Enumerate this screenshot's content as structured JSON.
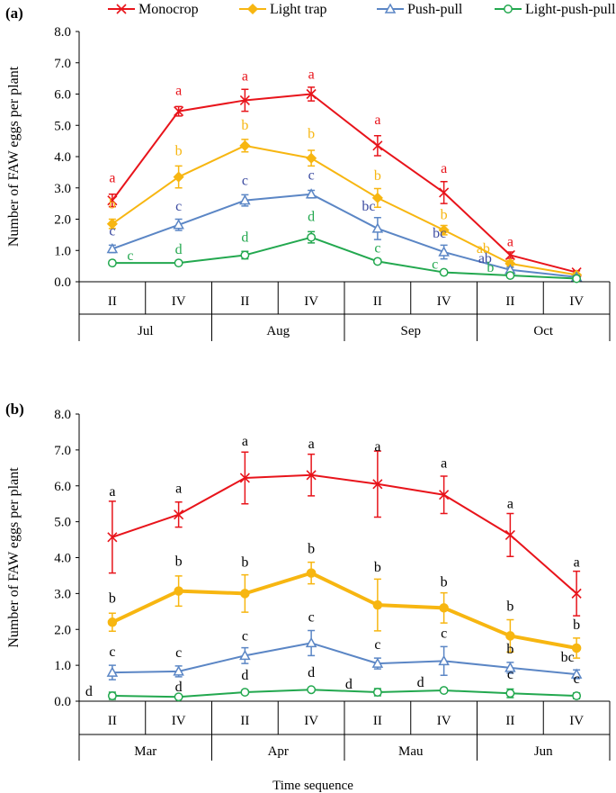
{
  "chart_data": [
    {
      "type": "line",
      "panel_label": "(a)",
      "ylabel": "Number of FAW eggs per plant",
      "xlabel": "",
      "ylim": [
        0,
        8
      ],
      "ytick_step": 1,
      "ytick_labels": [
        "0.0",
        "1.0",
        "2.0",
        "3.0",
        "4.0",
        "5.0",
        "6.0",
        "7.0",
        "8.0"
      ],
      "categories": [
        "II",
        "IV",
        "II",
        "IV",
        "II",
        "IV",
        "II",
        "IV"
      ],
      "months": [
        "Jul",
        "Aug",
        "Sep",
        "Oct"
      ],
      "legend": [
        "Monocrop",
        "Light trap",
        "Push-pull",
        "Light-push-pull"
      ],
      "series": [
        {
          "name": "Monocrop",
          "color": "#e8141b",
          "marker": "x",
          "width": 2,
          "values": [
            2.6,
            5.45,
            5.8,
            6.0,
            4.35,
            2.85,
            0.85,
            0.3
          ],
          "errors": [
            0.2,
            0.15,
            0.35,
            0.22,
            0.32,
            0.35,
            0.1,
            0.05
          ],
          "letters": [
            "a",
            "a",
            "a",
            "a",
            "a",
            "a",
            "a",
            ""
          ]
        },
        {
          "name": "Light trap",
          "color": "#f7b611",
          "marker": "diamond",
          "width": 2,
          "values": [
            1.85,
            3.35,
            4.35,
            3.95,
            2.68,
            1.65,
            0.58,
            0.22
          ],
          "errors": [
            0.15,
            0.35,
            0.2,
            0.25,
            0.3,
            0.15,
            0.1,
            0.05
          ],
          "letters": [
            "b",
            "b",
            "b",
            "b",
            "b",
            "b",
            "ab",
            ""
          ]
        },
        {
          "name": "Push-pull",
          "color": "#5b86c5",
          "marker": "triangle",
          "width": 2,
          "values": [
            1.05,
            1.82,
            2.6,
            2.8,
            1.7,
            0.95,
            0.38,
            0.15
          ],
          "errors": [
            0.12,
            0.18,
            0.18,
            0.12,
            0.35,
            0.22,
            0.08,
            0.05
          ],
          "letters": [
            "c",
            "c",
            "c",
            "c",
            "bc",
            "bc",
            "ab",
            ""
          ]
        },
        {
          "name": "Light-push-pull",
          "color": "#23a84f",
          "marker": "circle",
          "width": 2,
          "values": [
            0.6,
            0.6,
            0.85,
            1.42,
            0.65,
            0.3,
            0.2,
            0.1
          ],
          "errors": [
            0.05,
            0.05,
            0.12,
            0.18,
            0.05,
            0.05,
            0.05,
            0.03
          ],
          "letters": [
            "c",
            "d",
            "d",
            "d",
            "c",
            "c",
            "b",
            ""
          ]
        }
      ]
    },
    {
      "type": "line",
      "panel_label": "(b)",
      "ylabel": "Number of FAW eggs per plant",
      "xlabel": "Time sequence",
      "ylim": [
        0,
        8
      ],
      "ytick_step": 1,
      "ytick_labels": [
        "0.0",
        "1.0",
        "2.0",
        "3.0",
        "4.0",
        "5.0",
        "6.0",
        "7.0",
        "8.0"
      ],
      "categories": [
        "II",
        "IV",
        "II",
        "IV",
        "II",
        "IV",
        "II",
        "IV"
      ],
      "months": [
        "Mar",
        "Apr",
        "Mau",
        "Jun"
      ],
      "series": [
        {
          "name": "Monocrop",
          "color": "#e8141b",
          "marker": "x",
          "width": 2,
          "values": [
            4.57,
            5.2,
            6.22,
            6.3,
            6.05,
            5.75,
            4.63,
            3.0
          ],
          "errors": [
            1.0,
            0.35,
            0.72,
            0.58,
            0.92,
            0.52,
            0.6,
            0.62
          ],
          "letters": [
            "a",
            "a",
            "a",
            "a",
            "a",
            "a",
            "a",
            "a"
          ]
        },
        {
          "name": "Light trap",
          "color": "#f7b611",
          "marker": "circle-filled",
          "width": 4,
          "values": [
            2.2,
            3.07,
            3.0,
            3.57,
            2.68,
            2.6,
            1.82,
            1.48
          ],
          "errors": [
            0.25,
            0.42,
            0.52,
            0.3,
            0.72,
            0.42,
            0.45,
            0.28
          ],
          "letters": [
            "b",
            "b",
            "b",
            "b",
            "b",
            "b",
            "b",
            "b"
          ]
        },
        {
          "name": "Push-pull",
          "color": "#5b86c5",
          "marker": "triangle",
          "width": 2,
          "values": [
            0.8,
            0.83,
            1.27,
            1.62,
            1.05,
            1.12,
            0.93,
            0.75
          ],
          "errors": [
            0.2,
            0.15,
            0.22,
            0.35,
            0.15,
            0.4,
            0.15,
            0.12
          ],
          "letters": [
            "c",
            "c",
            "c",
            "c",
            "c",
            "c",
            "b",
            "bc"
          ]
        },
        {
          "name": "Light-push-pull",
          "color": "#23a84f",
          "marker": "circle",
          "width": 2,
          "values": [
            0.15,
            0.12,
            0.25,
            0.32,
            0.25,
            0.3,
            0.22,
            0.15
          ],
          "errors": [
            0.1,
            0.05,
            0.05,
            0.05,
            0.1,
            0.05,
            0.12,
            0.08
          ],
          "letters": [
            "d",
            "d",
            "d",
            "d",
            "d",
            "d",
            "c",
            "c"
          ]
        }
      ]
    }
  ]
}
